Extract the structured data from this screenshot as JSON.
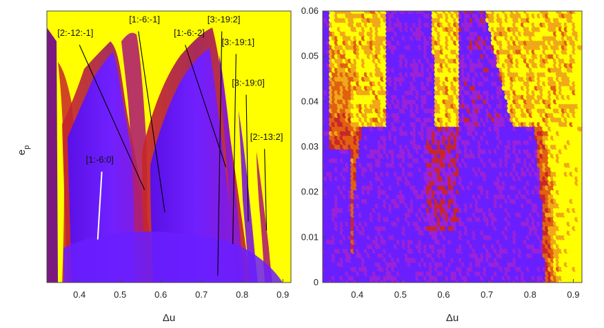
{
  "chart_data": [
    {
      "type": "heatmap",
      "panel": "left",
      "xlabel": "Δu",
      "ylabel": "e",
      "ylabel_subscript": "p",
      "xlim": [
        0.32,
        0.92
      ],
      "ylim": [
        0.0,
        0.06
      ],
      "xticks": [
        0.4,
        0.5,
        0.6,
        0.7,
        0.8,
        0.9
      ],
      "xtick_labels": [
        "0.4",
        "0.5",
        "0.6",
        "0.7",
        "0.8",
        "0.9"
      ],
      "colormap": [
        "#6a1fff",
        "#8a1ad0",
        "#c8262a",
        "#e06010",
        "#ffff00"
      ],
      "annotations": [
        {
          "text": "[2:-12:-1]",
          "label_at": [
            0.39,
            0.0545
          ],
          "line_from": [
            0.4,
            0.0525
          ],
          "line_to": [
            0.56,
            0.0205
          ],
          "color": "#000000"
        },
        {
          "text": "[1:-6:-1]",
          "label_at": [
            0.56,
            0.0575
          ],
          "line_from": [
            0.545,
            0.0555
          ],
          "line_to": [
            0.61,
            0.0155
          ],
          "color": "#000000"
        },
        {
          "text": "[1:-6:-2]",
          "label_at": [
            0.67,
            0.0545
          ],
          "line_from": [
            0.66,
            0.0525
          ],
          "line_to": [
            0.76,
            0.0255
          ],
          "color": "#000000"
        },
        {
          "text": "[3:-19:2]",
          "label_at": [
            0.755,
            0.0575
          ],
          "line_from": [
            0.75,
            0.0555
          ],
          "line_to": [
            0.74,
            0.0015
          ],
          "color": "#000000"
        },
        {
          "text": "[3:-19:1]",
          "label_at": [
            0.79,
            0.0525
          ],
          "line_from": [
            0.785,
            0.0505
          ],
          "line_to": [
            0.777,
            0.0085
          ],
          "color": "#000000"
        },
        {
          "text": "[3:-19:0]",
          "label_at": [
            0.815,
            0.0435
          ],
          "line_from": [
            0.81,
            0.0415
          ],
          "line_to": [
            0.815,
            0.0135
          ],
          "color": "#000000"
        },
        {
          "text": "[2:-13:2]",
          "label_at": [
            0.86,
            0.0315
          ],
          "line_from": [
            0.855,
            0.0295
          ],
          "line_to": [
            0.86,
            0.0115
          ],
          "color": "#000000"
        },
        {
          "text": "[1:-6:0]",
          "label_at": [
            0.45,
            0.0265
          ],
          "line_from": [
            0.455,
            0.0245
          ],
          "line_to": [
            0.445,
            0.0095
          ],
          "color": "#ffffff"
        }
      ]
    },
    {
      "type": "scatter",
      "panel": "right",
      "xlabel": "Δu",
      "xlim": [
        0.32,
        0.92
      ],
      "ylim": [
        0.0,
        0.06
      ],
      "xticks": [
        0.4,
        0.5,
        0.6,
        0.7,
        0.8,
        0.9
      ],
      "xtick_labels": [
        "0.4",
        "0.5",
        "0.6",
        "0.7",
        "0.8",
        "0.9"
      ],
      "yticks": [
        0,
        0.01,
        0.02,
        0.03,
        0.04,
        0.05,
        0.06
      ],
      "ytick_labels": [
        "0",
        "0.01",
        "0.02",
        "0.03",
        "0.04",
        "0.05",
        "0.06"
      ],
      "grid_dx": 0.01,
      "grid_de": 0.001,
      "colormap": [
        "#6a1fff",
        "#8a1ad0",
        "#c8262a",
        "#e06010",
        "#ffff00"
      ]
    }
  ]
}
